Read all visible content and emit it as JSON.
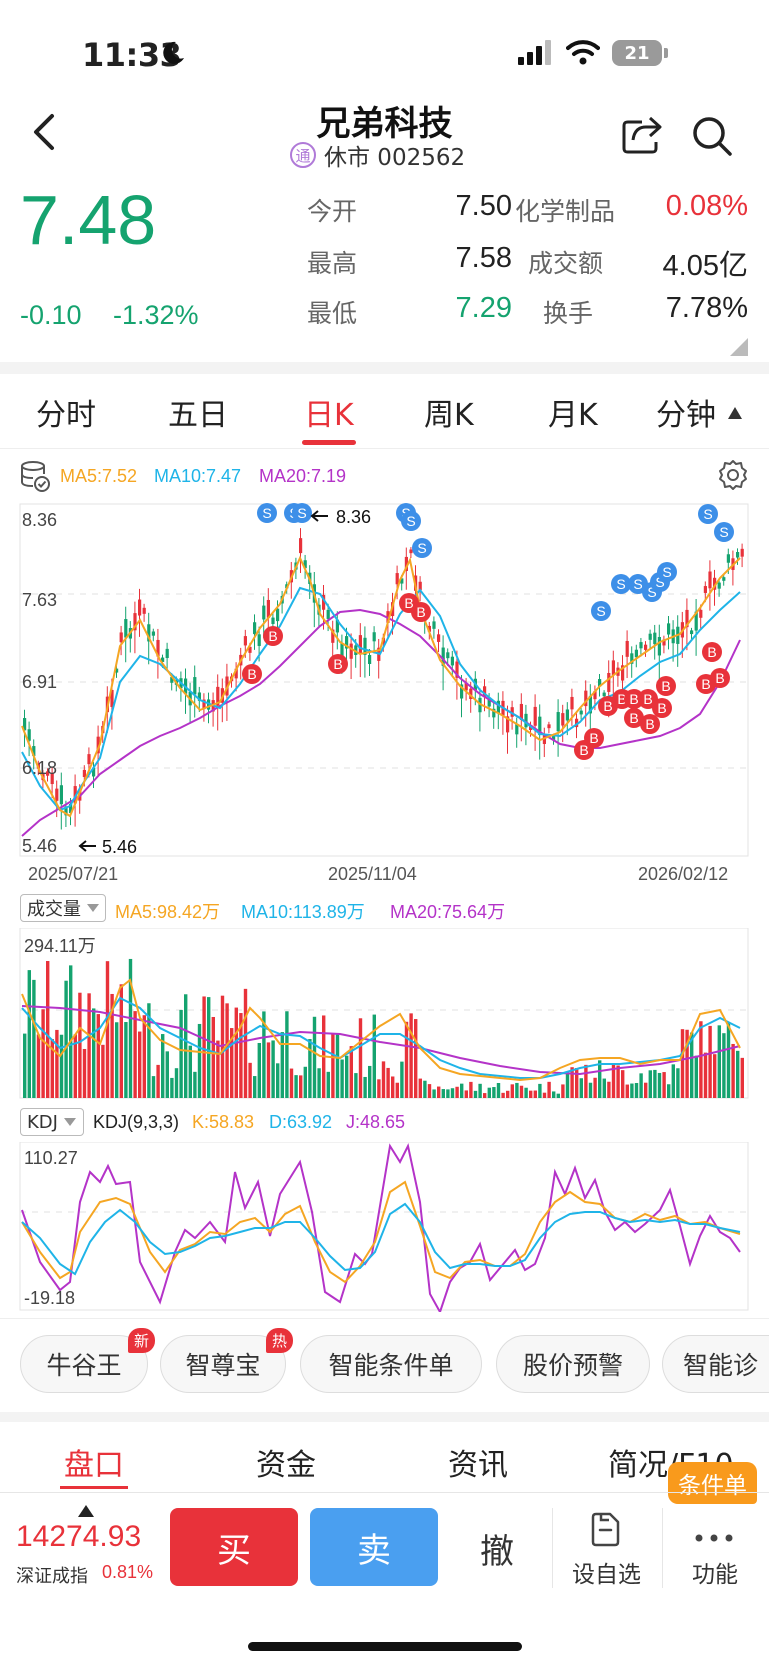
{
  "status": {
    "time": "11:33",
    "battery": "21"
  },
  "header": {
    "title": "兄弟科技",
    "tong": "通",
    "status_text": "休市 002562"
  },
  "quote": {
    "price": "7.48",
    "change": "-0.10",
    "change_pct": "-1.32%",
    "rows": [
      {
        "l1": "今开",
        "v1": "7.50",
        "l2": "化学制品",
        "v2": "0.08%"
      },
      {
        "l1": "最高",
        "v1": "7.58",
        "l2": "成交额",
        "v2": "4.05亿"
      },
      {
        "l1": "最低",
        "v1": "7.29",
        "l2": "换手",
        "v2": "7.78%"
      }
    ]
  },
  "tabs": [
    {
      "label": "分时"
    },
    {
      "label": "五日"
    },
    {
      "label": "日K",
      "active": true
    },
    {
      "label": "周K"
    },
    {
      "label": "月K"
    },
    {
      "label": "分钟"
    }
  ],
  "ma_legend": {
    "ma5": "MA5:7.52",
    "ma10": "MA10:7.47",
    "ma20": "MA20:7.19"
  },
  "price_axis": {
    "t1": "8.36",
    "t2": "7.63",
    "t3": "6.91",
    "t4": "6.18",
    "t5": "5.46"
  },
  "price_annot": {
    "high": "8.36",
    "low": "5.46"
  },
  "dates": {
    "d1": "2025/07/21",
    "d2": "2025/11/04",
    "d3": "2026/02/12"
  },
  "volume": {
    "selector": "成交量",
    "ma5": "MA5:98.42万",
    "ma10": "MA10:113.89万",
    "ma20": "MA20:75.64万",
    "max": "294.11万"
  },
  "kdj": {
    "selector": "KDJ",
    "name": "KDJ(9,3,3)",
    "k": "K:58.83",
    "d": "D:63.92",
    "j": "J:48.65",
    "max": "110.27",
    "min": "-19.18"
  },
  "markers": {
    "sell": "S",
    "buy": "B"
  },
  "chips": [
    {
      "label": "牛谷王",
      "badge": "新"
    },
    {
      "label": "智尊宝",
      "badge": "热"
    },
    {
      "label": "智能条件单"
    },
    {
      "label": "股价预警"
    },
    {
      "label": "智能诊"
    }
  ],
  "panel_tabs": [
    {
      "label": "盘口",
      "active": true
    },
    {
      "label": "资金"
    },
    {
      "label": "资讯"
    },
    {
      "label": "简况/F10"
    }
  ],
  "condition_badge": "条件单",
  "bottom": {
    "index_value": "14274.93",
    "index_name": "深证成指",
    "index_pct": "0.81%",
    "buy": "买",
    "sell": "卖",
    "cancel": "撤",
    "watch": "设自选",
    "func": "功能"
  },
  "colors": {
    "up": "#e8323a",
    "down": "#15a36f",
    "ma5": "#f5a623",
    "ma10": "#1fb4e8",
    "ma20": "#b433c8",
    "sell_marker": "#3d8fe8"
  }
}
